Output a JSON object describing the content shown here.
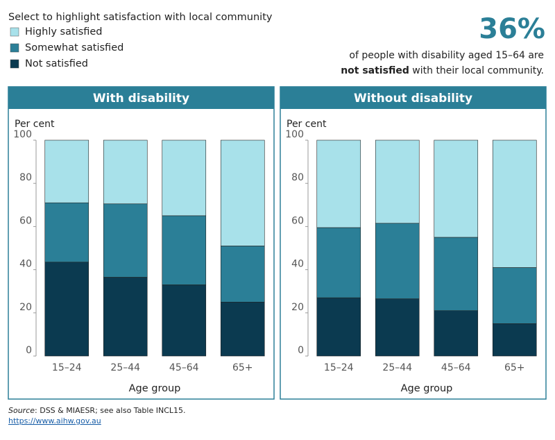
{
  "legend_title": "Select to highlight satisfaction with local community",
  "callout": {
    "figure": "36%",
    "line1": "of people with disability aged 15–64 are",
    "bold": "not satisfied",
    "rest": " with their local community."
  },
  "footer": {
    "source_label": "Source",
    "source_text": ": DSS & MIAESR; see also Table INCL15.",
    "url": "https://www.aihw.gov.au"
  },
  "chart_data": [
    {
      "type": "stacked-bar",
      "title": "With disability",
      "y_label": "Per cent",
      "x_label": "Age group",
      "categories": [
        "15–24",
        "25–44",
        "45–64",
        "65+"
      ],
      "series": [
        {
          "name": "Highly satisfied",
          "color": "#a8e1ea",
          "values": [
            29,
            29.5,
            35,
            49
          ]
        },
        {
          "name": "Somewhat satisfied",
          "color": "#2b7f97",
          "values": [
            27.5,
            34,
            32,
            26
          ]
        },
        {
          "name": "Not satisfied",
          "color": "#0b3a50",
          "values": [
            43.5,
            36.5,
            33,
            25
          ]
        }
      ],
      "ylim": [
        0,
        100
      ],
      "yticks": [
        0,
        20,
        40,
        60,
        80,
        100
      ]
    },
    {
      "type": "stacked-bar",
      "title": "Without disability",
      "y_label": "Per cent",
      "x_label": "Age group",
      "categories": [
        "15–24",
        "25–44",
        "45–64",
        "65+"
      ],
      "series": [
        {
          "name": "Highly satisfied",
          "color": "#a8e1ea",
          "values": [
            40.5,
            38.5,
            45,
            59
          ]
        },
        {
          "name": "Somewhat satisfied",
          "color": "#2b7f97",
          "values": [
            32.5,
            35,
            34,
            26
          ]
        },
        {
          "name": "Not satisfied",
          "color": "#0b3a50",
          "values": [
            27,
            26.5,
            21,
            15
          ]
        }
      ],
      "ylim": [
        0,
        100
      ],
      "yticks": [
        0,
        20,
        40,
        60,
        80,
        100
      ]
    }
  ]
}
